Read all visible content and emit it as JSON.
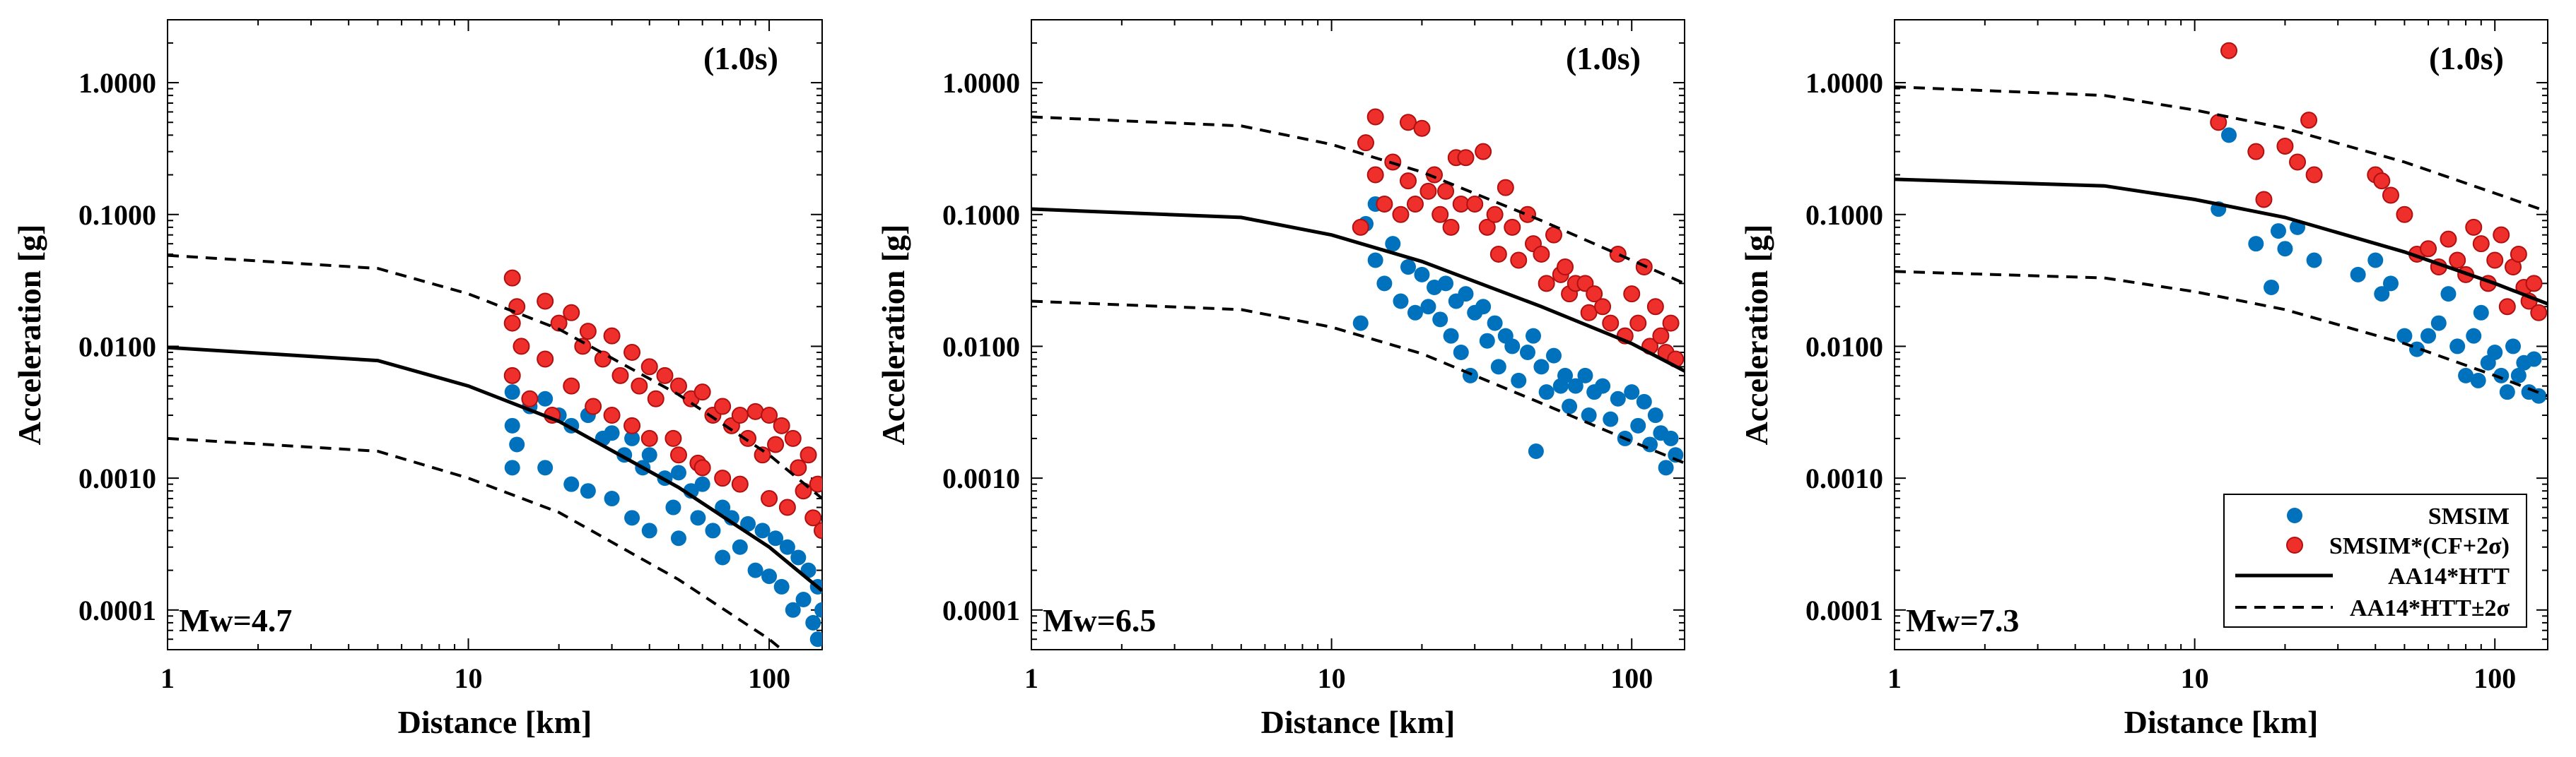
{
  "figure": {
    "colors": {
      "smsim": "#0072bd",
      "smsim_cf": "#ee2f2b",
      "smsim_cf_edge": "#b01010",
      "line": "#000000"
    },
    "legend": {
      "entries": [
        "SMSIM",
        "SMSIM*(CF+2σ)",
        "AA14*HTT",
        "AA14*HTT±2σ"
      ],
      "placement": "bottom-right of third panel"
    }
  },
  "chart_data": [
    {
      "type": "scatter",
      "title": "(1.0s)",
      "annotation": "Mw=4.7",
      "xlabel": "Distance [km]",
      "ylabel": "Acceleration [g]",
      "xscale": "log",
      "yscale": "log",
      "xlim": [
        1,
        150
      ],
      "ylim": [
        5e-05,
        3.0
      ],
      "xticks": [
        1,
        10,
        100
      ],
      "xtick_labels": [
        "1",
        "10",
        "100"
      ],
      "yticks": [
        0.0001,
        0.001,
        0.01,
        0.1,
        1.0
      ],
      "ytick_labels": [
        "0.0001",
        "0.0010",
        "0.0100",
        "0.1000",
        "1.0000"
      ],
      "series": [
        {
          "name": "AA14*HTT",
          "kind": "line",
          "style": "solid",
          "x": [
            1,
            5,
            10,
            20,
            50,
            100,
            150
          ],
          "y": [
            0.0098,
            0.0078,
            0.005,
            0.0027,
            0.00085,
            0.0003,
            0.00014
          ]
        },
        {
          "name": "AA14*HTT+2σ",
          "kind": "line",
          "style": "dashed",
          "x": [
            1,
            5,
            10,
            20,
            50,
            100,
            150
          ],
          "y": [
            0.049,
            0.039,
            0.025,
            0.0135,
            0.0043,
            0.0015,
            0.0007
          ]
        },
        {
          "name": "AA14*HTT-2σ",
          "kind": "line",
          "style": "dashed",
          "x": [
            1,
            5,
            10,
            20,
            50,
            100,
            150
          ],
          "y": [
            0.002,
            0.0016,
            0.001,
            0.00055,
            0.00017,
            6e-05,
            2.8e-05
          ]
        },
        {
          "name": "SMSIM",
          "kind": "points",
          "color": "smsim",
          "x": [
            14.0,
            14.0,
            14.0,
            14.5,
            16.0,
            18.0,
            18.0,
            20.0,
            22.0,
            22.0,
            25.0,
            25.0,
            28.0,
            30.0,
            30.0,
            33.0,
            35.0,
            35.0,
            38.0,
            40.0,
            40.0,
            45.0,
            48.0,
            50.0,
            50.0,
            55.0,
            58.0,
            60.0,
            65.0,
            70.0,
            70.0,
            75.0,
            80.0,
            85.0,
            90.0,
            95.0,
            100.0,
            105.0,
            110.0,
            115.0,
            120.0,
            125.0,
            130.0,
            135.0,
            140.0,
            145.0,
            145.0,
            150.0
          ],
          "y": [
            0.0045,
            0.0025,
            0.0012,
            0.0018,
            0.0035,
            0.004,
            0.0012,
            0.003,
            0.0025,
            0.0009,
            0.003,
            0.0008,
            0.002,
            0.0022,
            0.0007,
            0.0015,
            0.002,
            0.0005,
            0.0012,
            0.0015,
            0.0004,
            0.001,
            0.0006,
            0.0011,
            0.00035,
            0.0008,
            0.0005,
            0.0009,
            0.0004,
            0.0006,
            0.00025,
            0.0005,
            0.0003,
            0.00045,
            0.0002,
            0.0004,
            0.00018,
            0.00035,
            0.00015,
            0.0003,
            0.0001,
            0.00025,
            0.00012,
            0.0002,
            8e-05,
            0.00015,
            6e-05,
            0.0001
          ]
        },
        {
          "name": "SMSIM*(CF+2σ)",
          "kind": "points",
          "color": "smsim_cf",
          "x": [
            14.0,
            14.0,
            14.0,
            14.5,
            15.0,
            16.0,
            18.0,
            18.0,
            19.0,
            20.0,
            22.0,
            22.0,
            24.0,
            25.0,
            26.0,
            28.0,
            30.0,
            30.0,
            32.0,
            35.0,
            35.0,
            37.0,
            40.0,
            40.0,
            42.0,
            45.0,
            48.0,
            50.0,
            50.0,
            55.0,
            58.0,
            60.0,
            60.0,
            65.0,
            70.0,
            70.0,
            75.0,
            80.0,
            80.0,
            85.0,
            90.0,
            95.0,
            100.0,
            100.0,
            105.0,
            110.0,
            115.0,
            120.0,
            125.0,
            130.0,
            135.0,
            140.0,
            145.0,
            150.0
          ],
          "y": [
            0.033,
            0.015,
            0.006,
            0.02,
            0.01,
            0.004,
            0.022,
            0.008,
            0.003,
            0.015,
            0.018,
            0.005,
            0.01,
            0.013,
            0.0035,
            0.008,
            0.012,
            0.003,
            0.006,
            0.009,
            0.0025,
            0.005,
            0.007,
            0.002,
            0.004,
            0.006,
            0.002,
            0.005,
            0.0015,
            0.004,
            0.0013,
            0.0045,
            0.0012,
            0.003,
            0.0035,
            0.001,
            0.0025,
            0.003,
            0.0009,
            0.002,
            0.0032,
            0.0015,
            0.003,
            0.0007,
            0.0018,
            0.0025,
            0.0006,
            0.002,
            0.0012,
            0.0008,
            0.0015,
            0.0005,
            0.0009,
            0.0004
          ]
        }
      ]
    },
    {
      "type": "scatter",
      "title": "(1.0s)",
      "annotation": "Mw=6.5",
      "xlabel": "Distance [km]",
      "ylabel": "Acceleration [g]",
      "xscale": "log",
      "yscale": "log",
      "xlim": [
        1,
        150
      ],
      "ylim": [
        5e-05,
        3.0
      ],
      "xticks": [
        1,
        10,
        100
      ],
      "xtick_labels": [
        "1",
        "10",
        "100"
      ],
      "yticks": [
        0.0001,
        0.001,
        0.01,
        0.1,
        1.0
      ],
      "ytick_labels": [
        "0.0001",
        "0.0010",
        "0.0100",
        "0.1000",
        "1.0000"
      ],
      "series": [
        {
          "name": "AA14*HTT",
          "kind": "line",
          "style": "solid",
          "x": [
            1,
            5,
            10,
            20,
            50,
            100,
            150
          ],
          "y": [
            0.11,
            0.095,
            0.07,
            0.044,
            0.02,
            0.0105,
            0.0065
          ]
        },
        {
          "name": "AA14*HTT+2σ",
          "kind": "line",
          "style": "dashed",
          "x": [
            1,
            5,
            10,
            20,
            50,
            100,
            150
          ],
          "y": [
            0.55,
            0.47,
            0.34,
            0.21,
            0.09,
            0.045,
            0.03
          ]
        },
        {
          "name": "AA14*HTT-2σ",
          "kind": "line",
          "style": "dashed",
          "x": [
            1,
            5,
            10,
            20,
            50,
            100,
            150
          ],
          "y": [
            0.022,
            0.019,
            0.014,
            0.0088,
            0.0037,
            0.0019,
            0.0013
          ]
        },
        {
          "name": "SMSIM",
          "kind": "points",
          "color": "smsim",
          "x": [
            12.5,
            13.0,
            14.0,
            14.0,
            15.0,
            16.0,
            17.0,
            18.0,
            19.0,
            20.0,
            21.0,
            22.0,
            23.0,
            24.0,
            25.0,
            26.0,
            27.0,
            28.0,
            29.0,
            30.0,
            32.0,
            33.0,
            35.0,
            36.0,
            38.0,
            40.0,
            42.0,
            45.0,
            47.0,
            48.0,
            50.0,
            52.0,
            55.0,
            58.0,
            60.0,
            62.0,
            65.0,
            70.0,
            72.0,
            75.0,
            80.0,
            85.0,
            90.0,
            95.0,
            100.0,
            105.0,
            110.0,
            115.0,
            120.0,
            125.0,
            130.0,
            135.0,
            140.0
          ],
          "y": [
            0.015,
            0.085,
            0.12,
            0.045,
            0.03,
            0.06,
            0.022,
            0.04,
            0.018,
            0.035,
            0.02,
            0.028,
            0.016,
            0.03,
            0.012,
            0.022,
            0.009,
            0.025,
            0.006,
            0.018,
            0.02,
            0.011,
            0.015,
            0.007,
            0.012,
            0.01,
            0.0055,
            0.009,
            0.012,
            0.0016,
            0.007,
            0.0045,
            0.0085,
            0.005,
            0.006,
            0.0035,
            0.005,
            0.006,
            0.003,
            0.0045,
            0.005,
            0.0028,
            0.004,
            0.002,
            0.0045,
            0.0025,
            0.0038,
            0.0018,
            0.003,
            0.0022,
            0.0012,
            0.002,
            0.0015
          ]
        },
        {
          "name": "SMSIM*(CF+2σ)",
          "kind": "points",
          "color": "smsim_cf",
          "x": [
            12.5,
            13.0,
            14.0,
            14.0,
            15.0,
            16.0,
            17.0,
            18.0,
            18.0,
            19.0,
            20.0,
            21.0,
            22.0,
            23.0,
            24.0,
            25.0,
            26.0,
            27.0,
            28.0,
            30.0,
            32.0,
            33.0,
            35.0,
            36.0,
            38.0,
            40.0,
            42.0,
            45.0,
            47.0,
            50.0,
            52.0,
            55.0,
            58.0,
            60.0,
            62.0,
            65.0,
            70.0,
            72.0,
            75.0,
            80.0,
            85.0,
            90.0,
            95.0,
            100.0,
            105.0,
            110.0,
            115.0,
            120.0,
            125.0,
            130.0,
            135.0,
            140.0
          ],
          "y": [
            0.08,
            0.35,
            0.55,
            0.2,
            0.12,
            0.25,
            0.1,
            0.5,
            0.18,
            0.12,
            0.45,
            0.15,
            0.2,
            0.1,
            0.15,
            0.08,
            0.27,
            0.12,
            0.27,
            0.12,
            0.3,
            0.08,
            0.1,
            0.05,
            0.16,
            0.08,
            0.045,
            0.1,
            0.06,
            0.05,
            0.03,
            0.07,
            0.035,
            0.04,
            0.025,
            0.03,
            0.03,
            0.018,
            0.025,
            0.02,
            0.015,
            0.05,
            0.012,
            0.025,
            0.015,
            0.04,
            0.01,
            0.02,
            0.012,
            0.009,
            0.015,
            0.008
          ]
        }
      ]
    },
    {
      "type": "scatter",
      "title": "(1.0s)",
      "annotation": "Mw=7.3",
      "xlabel": "Distance [km]",
      "ylabel": "Acceleration [g]",
      "xscale": "log",
      "yscale": "log",
      "xlim": [
        1,
        150
      ],
      "ylim": [
        5e-05,
        3.0
      ],
      "xticks": [
        1,
        10,
        100
      ],
      "xtick_labels": [
        "1",
        "10",
        "100"
      ],
      "yticks": [
        0.0001,
        0.001,
        0.01,
        0.1,
        1.0
      ],
      "ytick_labels": [
        "0.0001",
        "0.0010",
        "0.0100",
        "0.1000",
        "1.0000"
      ],
      "series": [
        {
          "name": "AA14*HTT",
          "kind": "line",
          "style": "solid",
          "x": [
            1,
            5,
            10,
            20,
            50,
            100,
            150
          ],
          "y": [
            0.185,
            0.165,
            0.13,
            0.095,
            0.052,
            0.03,
            0.021
          ]
        },
        {
          "name": "AA14*HTT+2σ",
          "kind": "line",
          "style": "dashed",
          "x": [
            1,
            5,
            10,
            20,
            50,
            100,
            150
          ],
          "y": [
            0.93,
            0.8,
            0.62,
            0.45,
            0.25,
            0.145,
            0.105
          ]
        },
        {
          "name": "AA14*HTT-2σ",
          "kind": "line",
          "style": "dashed",
          "x": [
            1,
            5,
            10,
            20,
            50,
            100,
            150
          ],
          "y": [
            0.037,
            0.033,
            0.026,
            0.019,
            0.0105,
            0.006,
            0.0042
          ]
        },
        {
          "name": "SMSIM",
          "kind": "points",
          "color": "smsim",
          "x": [
            12.0,
            13.0,
            16.0,
            18.0,
            19.0,
            20.0,
            22.0,
            25.0,
            35.0,
            40.0,
            42.0,
            45.0,
            50.0,
            55.0,
            60.0,
            65.0,
            70.0,
            75.0,
            80.0,
            85.0,
            88.0,
            90.0,
            95.0,
            100.0,
            105.0,
            110.0,
            115.0,
            120.0,
            125.0,
            130.0,
            135.0,
            140.0
          ],
          "y": [
            0.11,
            0.4,
            0.06,
            0.028,
            0.075,
            0.055,
            0.08,
            0.045,
            0.035,
            0.045,
            0.025,
            0.03,
            0.012,
            0.0095,
            0.012,
            0.015,
            0.025,
            0.01,
            0.006,
            0.012,
            0.0055,
            0.018,
            0.0075,
            0.009,
            0.006,
            0.0045,
            0.01,
            0.006,
            0.0075,
            0.0045,
            0.008,
            0.0042
          ]
        },
        {
          "name": "SMSIM*(CF+2σ)",
          "kind": "points",
          "color": "smsim_cf",
          "x": [
            12.0,
            13.0,
            16.0,
            17.0,
            20.0,
            22.0,
            24.0,
            25.0,
            40.0,
            42.0,
            45.0,
            50.0,
            55.0,
            60.0,
            65.0,
            70.0,
            75.0,
            80.0,
            85.0,
            90.0,
            95.0,
            100.0,
            105.0,
            110.0,
            115.0,
            120.0,
            125.0,
            130.0,
            135.0,
            140.0
          ],
          "y": [
            0.5,
            1.75,
            0.3,
            0.13,
            0.33,
            0.25,
            0.52,
            0.2,
            0.2,
            0.18,
            0.14,
            0.1,
            0.05,
            0.055,
            0.04,
            0.065,
            0.045,
            0.035,
            0.08,
            0.06,
            0.03,
            0.045,
            0.07,
            0.02,
            0.04,
            0.05,
            0.028,
            0.022,
            0.03,
            0.018
          ]
        }
      ]
    }
  ]
}
